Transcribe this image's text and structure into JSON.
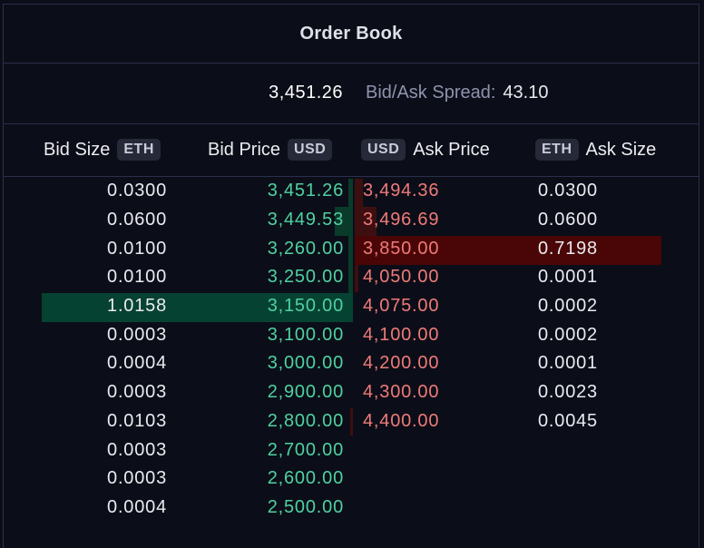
{
  "panel": {
    "title": "Order Book"
  },
  "spread": {
    "mid_price": "3,451.26",
    "label": "Bid/Ask Spread:",
    "value": "43.10"
  },
  "headers": {
    "bid_size": "Bid Size",
    "bid_size_unit": "ETH",
    "bid_price": "Bid Price",
    "bid_price_unit": "USD",
    "ask_price_unit": "USD",
    "ask_price": "Ask Price",
    "ask_size_unit": "ETH",
    "ask_size": "Ask Size"
  },
  "bids": [
    {
      "size": "0.0300",
      "price": "3,451.26"
    },
    {
      "size": "0.0600",
      "price": "3,449.53"
    },
    {
      "size": "0.0100",
      "price": "3,260.00"
    },
    {
      "size": "0.0100",
      "price": "3,250.00"
    },
    {
      "size": "1.0158",
      "price": "3,150.00"
    },
    {
      "size": "0.0003",
      "price": "3,100.00"
    },
    {
      "size": "0.0004",
      "price": "3,000.00"
    },
    {
      "size": "0.0003",
      "price": "2,900.00"
    },
    {
      "size": "0.0103",
      "price": "2,800.00"
    },
    {
      "size": "0.0003",
      "price": "2,700.00"
    },
    {
      "size": "0.0003",
      "price": "2,600.00"
    },
    {
      "size": "0.0004",
      "price": "2,500.00"
    }
  ],
  "asks": [
    {
      "price": "3,494.36",
      "size": "0.0300"
    },
    {
      "price": "3,496.69",
      "size": "0.0600"
    },
    {
      "price": "3,850.00",
      "size": "0.7198"
    },
    {
      "price": "4,050.00",
      "size": "0.0001"
    },
    {
      "price": "4,075.00",
      "size": "0.0002"
    },
    {
      "price": "4,100.00",
      "size": "0.0002"
    },
    {
      "price": "4,200.00",
      "size": "0.0001"
    },
    {
      "price": "4,300.00",
      "size": "0.0023"
    },
    {
      "price": "4,400.00",
      "size": "0.0045"
    }
  ],
  "colors": {
    "background": "#0b0e18",
    "border": "#2c2f4d",
    "bid_text": "#4fd1a1",
    "ask_text": "#f07a7a",
    "bid_depth_bar": "#064232",
    "ask_depth_bar": "#4a0606"
  }
}
